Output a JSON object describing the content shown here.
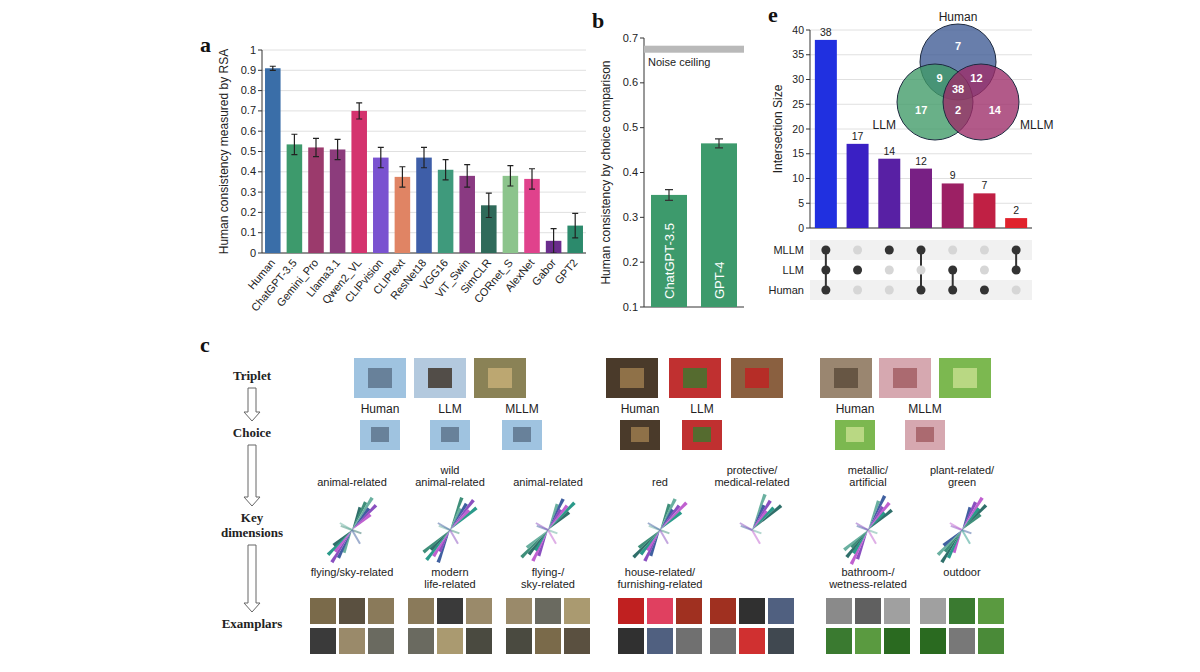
{
  "chart_data": [
    {
      "panel": "a",
      "type": "bar",
      "categories": [
        "Human",
        "ChatGPT-3.5",
        "Gemini_Pro",
        "Llama3.1",
        "Qwen2_VL",
        "CLIPvision",
        "CLIPtext",
        "ResNet18",
        "VGG16",
        "ViT_Swin",
        "SimCLR",
        "CORnet_S",
        "AlexNet",
        "Gabor",
        "GPT2"
      ],
      "values": [
        0.91,
        0.535,
        0.52,
        0.51,
        0.7,
        0.47,
        0.375,
        0.47,
        0.41,
        0.38,
        0.235,
        0.38,
        0.365,
        0.06,
        0.135
      ],
      "errors": [
        0.01,
        0.05,
        0.045,
        0.05,
        0.04,
        0.05,
        0.05,
        0.05,
        0.05,
        0.055,
        0.06,
        0.05,
        0.05,
        0.06,
        0.06
      ],
      "colors": [
        "#3a6ea8",
        "#3d9a6c",
        "#9b3a6c",
        "#8c3c7c",
        "#d4336e",
        "#7a52d0",
        "#e08464",
        "#3e5ea8",
        "#3f9a7c",
        "#8a3a82",
        "#2f6a5a",
        "#8cc48c",
        "#e0428c",
        "#6a2c8c",
        "#2c8a6c"
      ],
      "ylabel": "Human consistency measured by RSA",
      "ylim": [
        0,
        1
      ],
      "yticks": [
        0,
        0.1,
        0.2,
        0.3,
        0.4,
        0.5,
        0.6,
        0.7,
        0.8,
        0.9,
        1
      ],
      "grid": true
    },
    {
      "panel": "b",
      "type": "bar",
      "categories": [
        "ChatGPT-3.5",
        "GPT-4"
      ],
      "values": [
        0.35,
        0.465
      ],
      "errors": [
        0.012,
        0.01
      ],
      "color": "#3d9a6c",
      "ylabel": "Human consistency by choice comparison",
      "ylim": [
        0.1,
        0.7
      ],
      "yticks": [
        0.1,
        0.2,
        0.3,
        0.4,
        0.5,
        0.6,
        0.7
      ],
      "noise_ceiling": {
        "label": "Noise ceiling",
        "value": 0.675
      }
    },
    {
      "panel": "e",
      "type": "bar",
      "categories": [
        null,
        null,
        null,
        null,
        null,
        null,
        null
      ],
      "values": [
        38,
        17,
        14,
        12,
        9,
        7,
        2
      ],
      "colors": [
        "#2030e0",
        "#3a20c4",
        "#5820a4",
        "#782084",
        "#9c2064",
        "#c02044",
        "#e0222c"
      ],
      "data_labels": true,
      "ylabel": "Intersection Size",
      "ylim": [
        0,
        40
      ],
      "yticks": [
        0,
        5,
        10,
        15,
        20,
        25,
        30,
        35,
        40
      ],
      "grid": true,
      "sets": [
        "MLLM",
        "LLM",
        "Human"
      ],
      "membership": [
        [
          "MLLM",
          "LLM",
          "Human"
        ],
        [
          "LLM"
        ],
        [
          "MLLM"
        ],
        [
          "MLLM",
          "Human"
        ],
        [
          "LLM",
          "Human"
        ],
        [
          "Human"
        ],
        [
          "MLLM",
          "LLM"
        ]
      ]
    }
  ],
  "venn": {
    "sets": [
      {
        "name": "Human",
        "color": "#3d5a94"
      },
      {
        "name": "LLM",
        "color": "#3f9a66"
      },
      {
        "name": "MLLM",
        "color": "#9c2c68"
      }
    ],
    "regions": [
      {
        "sets": [
          "Human"
        ],
        "value": 7
      },
      {
        "sets": [
          "Human",
          "LLM"
        ],
        "value": 9
      },
      {
        "sets": [
          "Human",
          "MLLM"
        ],
        "value": 12
      },
      {
        "sets": [
          "Human",
          "LLM",
          "MLLM"
        ],
        "value": 38
      },
      {
        "sets": [
          "LLM"
        ],
        "value": 17
      },
      {
        "sets": [
          "LLM",
          "MLLM"
        ],
        "value": 2
      },
      {
        "sets": [
          "MLLM"
        ],
        "value": 14
      }
    ]
  },
  "diagram": {
    "panel": "c",
    "steps": [
      "Triplet",
      "Choice",
      "Key dimensions",
      "Examplars"
    ],
    "groups": [
      {
        "choosers": [
          "Human",
          "LLM",
          "MLLM"
        ],
        "dimensions": [
          [
            "animal-related",
            "flying/sky-related"
          ],
          [
            "wild animal-related",
            "modern life-related"
          ],
          [
            "animal-related",
            "flying-/ sky-related"
          ]
        ]
      },
      {
        "choosers": [
          "Human",
          "LLM"
        ],
        "dimensions": [
          [
            "red",
            "house-related/ furnishing-related"
          ],
          [
            "protective/ medical-related"
          ]
        ]
      },
      {
        "choosers": [
          "Human",
          "MLLM"
        ],
        "dimensions": [
          [
            "metallic/ artificial",
            "bathroom-/ wetness-related"
          ],
          [
            "plant-related/ green",
            "outdoor"
          ]
        ]
      }
    ]
  }
}
